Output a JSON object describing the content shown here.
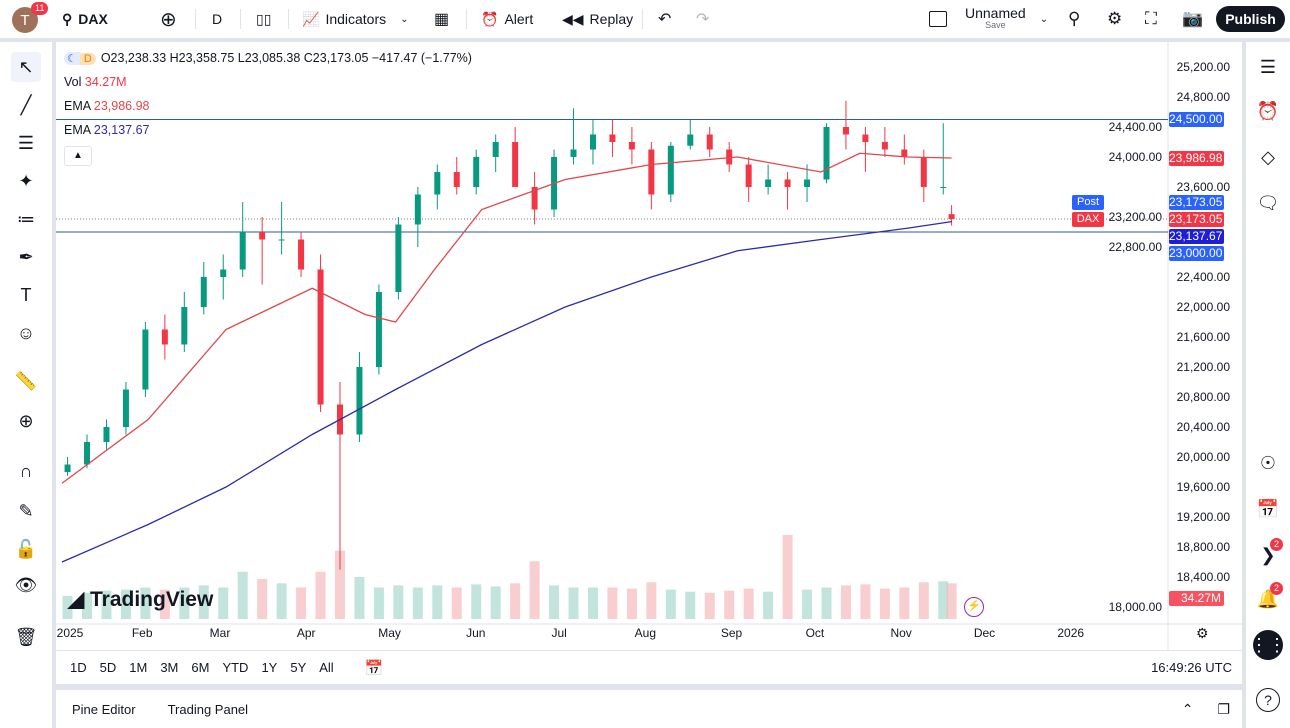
{
  "header": {
    "avatar_letter": "T",
    "notifications": "11",
    "symbol": "DAX",
    "interval": "D",
    "indicators": "Indicators",
    "alert": "Alert",
    "replay": "Replay",
    "layout_name": "Unnamed",
    "layout_sub": "Save",
    "publish": "Publish"
  },
  "legend": {
    "ohlc": "O23,238.33 H23,358.75 L23,085.38 C23,173.05 −417.47 (−1.77%)",
    "session": "D",
    "vol_label": "Vol",
    "vol_value": "34.27M",
    "ema1_label": "EMA",
    "ema1_value": "23,986.98",
    "ema2_label": "EMA",
    "ema2_value": "23,137.67"
  },
  "price_labels": {
    "hline_top": "24,500.00",
    "ema1": "23,986.98",
    "post_tag": "Post",
    "post": "23,173.05",
    "dax_tag": "DAX",
    "dax": "23,173.05",
    "ema2": "23,137.67",
    "hline_bottom": "23,000.00",
    "vol": "34.27M"
  },
  "logo": "TradingView",
  "bottom": {
    "ranges": [
      "1D",
      "5D",
      "1M",
      "3M",
      "6M",
      "YTD",
      "1Y",
      "5Y",
      "All"
    ],
    "time": "16:49:26 UTC",
    "tabs": [
      "Pine Editor",
      "Trading Panel"
    ]
  },
  "right_badges": {
    "feed": "2",
    "alerts": "2"
  },
  "colors": {
    "up": "#089981",
    "down": "#f23645",
    "ema_fast": "#e0474c",
    "ema_slow": "#2c2ca8",
    "hline": "#2a5f8f",
    "accent": "#2962ff"
  },
  "chart_data": {
    "type": "candlestick",
    "y_ticks": [
      "25,200.00",
      "24,800.00",
      "24,400.00",
      "24,000.00",
      "23,600.00",
      "23,200.00",
      "22,800.00",
      "22,400.00",
      "22,000.00",
      "21,600.00",
      "21,200.00",
      "20,800.00",
      "20,400.00",
      "20,000.00",
      "19,600.00",
      "19,200.00",
      "18,800.00",
      "18,400.00",
      "18,000.00"
    ],
    "ylim": [
      18000,
      25200
    ],
    "x_ticks": [
      [
        "2025",
        "2025-01-01"
      ],
      [
        "Feb",
        "2025-02-01"
      ],
      [
        "Mar",
        "2025-03-01"
      ],
      [
        "Apr",
        "2025-04-01"
      ],
      [
        "May",
        "2025-05-01"
      ],
      [
        "Jun",
        "2025-06-01"
      ],
      [
        "Jul",
        "2025-07-01"
      ],
      [
        "Aug",
        "2025-08-01"
      ],
      [
        "Sep",
        "2025-09-01"
      ],
      [
        "Oct",
        "2025-10-01"
      ],
      [
        "Nov",
        "2025-11-01"
      ],
      [
        "Dec",
        "2025-12-01"
      ],
      [
        "2026",
        "2026-01-01"
      ]
    ],
    "hlines": [
      24500,
      23000
    ],
    "candles_approx": [
      [
        "2025-01-03",
        19800,
        20000,
        19750,
        19900,
        22
      ],
      [
        "2025-01-10",
        19900,
        20300,
        19850,
        20200,
        25
      ],
      [
        "2025-01-17",
        20200,
        20500,
        20100,
        20400,
        27
      ],
      [
        "2025-01-24",
        20400,
        21000,
        20300,
        20900,
        28
      ],
      [
        "2025-01-31",
        20900,
        21800,
        20800,
        21700,
        30
      ],
      [
        "2025-02-07",
        21700,
        21900,
        21300,
        21500,
        28
      ],
      [
        "2025-02-14",
        21500,
        22200,
        21400,
        22000,
        30
      ],
      [
        "2025-02-21",
        22000,
        22600,
        21900,
        22400,
        32
      ],
      [
        "2025-02-28",
        22400,
        22700,
        22100,
        22500,
        30
      ],
      [
        "2025-03-07",
        22500,
        23400,
        22400,
        23000,
        45
      ],
      [
        "2025-03-14",
        23000,
        23200,
        22300,
        22900,
        38
      ],
      [
        "2025-03-21",
        22900,
        23400,
        22700,
        22900,
        34
      ],
      [
        "2025-03-28",
        22900,
        23000,
        22400,
        22500,
        30
      ],
      [
        "2025-04-04",
        22500,
        22700,
        20600,
        20700,
        45
      ],
      [
        "2025-04-11",
        20700,
        21000,
        18500,
        20300,
        65
      ],
      [
        "2025-04-18",
        20300,
        21400,
        20200,
        21200,
        40
      ],
      [
        "2025-04-25",
        21200,
        22300,
        21100,
        22200,
        30
      ],
      [
        "2025-05-02",
        22200,
        23200,
        22100,
        23100,
        32
      ],
      [
        "2025-05-09",
        23100,
        23600,
        22800,
        23500,
        30
      ],
      [
        "2025-05-16",
        23500,
        23900,
        23300,
        23800,
        32
      ],
      [
        "2025-05-23",
        23800,
        24000,
        23500,
        23600,
        30
      ],
      [
        "2025-05-30",
        23600,
        24100,
        23500,
        24000,
        33
      ],
      [
        "2025-06-06",
        24000,
        24300,
        23800,
        24200,
        31
      ],
      [
        "2025-06-13",
        24200,
        24400,
        23600,
        23600,
        34
      ],
      [
        "2025-06-20",
        23600,
        23800,
        23100,
        23300,
        55
      ],
      [
        "2025-06-27",
        23300,
        24100,
        23200,
        24000,
        32
      ],
      [
        "2025-07-04",
        24000,
        24650,
        23900,
        24100,
        30
      ],
      [
        "2025-07-11",
        24100,
        24500,
        23900,
        24300,
        30
      ],
      [
        "2025-07-18",
        24300,
        24500,
        24000,
        24200,
        30
      ],
      [
        "2025-07-25",
        24200,
        24400,
        23900,
        24100,
        29
      ],
      [
        "2025-08-01",
        24100,
        24200,
        23300,
        23500,
        35
      ],
      [
        "2025-08-08",
        23500,
        24200,
        23400,
        24150,
        28
      ],
      [
        "2025-08-15",
        24150,
        24500,
        24100,
        24300,
        26
      ],
      [
        "2025-08-22",
        24300,
        24400,
        24000,
        24100,
        25
      ],
      [
        "2025-08-29",
        24100,
        24200,
        23800,
        23900,
        27
      ],
      [
        "2025-09-05",
        23900,
        24000,
        23400,
        23600,
        29
      ],
      [
        "2025-09-12",
        23600,
        23900,
        23500,
        23700,
        26
      ],
      [
        "2025-09-19",
        23700,
        23800,
        23300,
        23600,
        80
      ],
      [
        "2025-09-26",
        23600,
        23900,
        23400,
        23700,
        28
      ],
      [
        "2025-10-03",
        23700,
        24450,
        23650,
        24400,
        30
      ],
      [
        "2025-10-10",
        24400,
        24750,
        24100,
        24300,
        32
      ],
      [
        "2025-10-17",
        24300,
        24400,
        23800,
        24200,
        33
      ],
      [
        "2025-10-24",
        24200,
        24400,
        24000,
        24100,
        29
      ],
      [
        "2025-10-31",
        24100,
        24300,
        23900,
        24000,
        30
      ],
      [
        "2025-11-07",
        24000,
        24100,
        23400,
        23600,
        35
      ],
      [
        "2025-11-14",
        23600,
        24450,
        23500,
        23600,
        36
      ],
      [
        "2025-11-17",
        23238,
        23359,
        23085,
        23173,
        34
      ]
    ],
    "ema_fast": [
      [
        "2025-01-01",
        19650
      ],
      [
        "2025-02-01",
        20500
      ],
      [
        "2025-03-01",
        21700
      ],
      [
        "2025-04-01",
        22250
      ],
      [
        "2025-04-20",
        21900
      ],
      [
        "2025-05-01",
        21800
      ],
      [
        "2025-05-15",
        22500
      ],
      [
        "2025-06-01",
        23300
      ],
      [
        "2025-07-01",
        23700
      ],
      [
        "2025-08-01",
        23900
      ],
      [
        "2025-09-01",
        24000
      ],
      [
        "2025-10-01",
        23800
      ],
      [
        "2025-10-15",
        24050
      ],
      [
        "2025-11-01",
        24000
      ],
      [
        "2025-11-17",
        23987
      ]
    ],
    "ema_slow": [
      [
        "2025-01-01",
        18600
      ],
      [
        "2025-02-01",
        19100
      ],
      [
        "2025-03-01",
        19600
      ],
      [
        "2025-04-01",
        20300
      ],
      [
        "2025-05-01",
        20900
      ],
      [
        "2025-06-01",
        21500
      ],
      [
        "2025-07-01",
        22000
      ],
      [
        "2025-08-01",
        22400
      ],
      [
        "2025-09-01",
        22750
      ],
      [
        "2025-10-01",
        22900
      ],
      [
        "2025-11-01",
        23050
      ],
      [
        "2025-11-17",
        23138
      ]
    ]
  }
}
